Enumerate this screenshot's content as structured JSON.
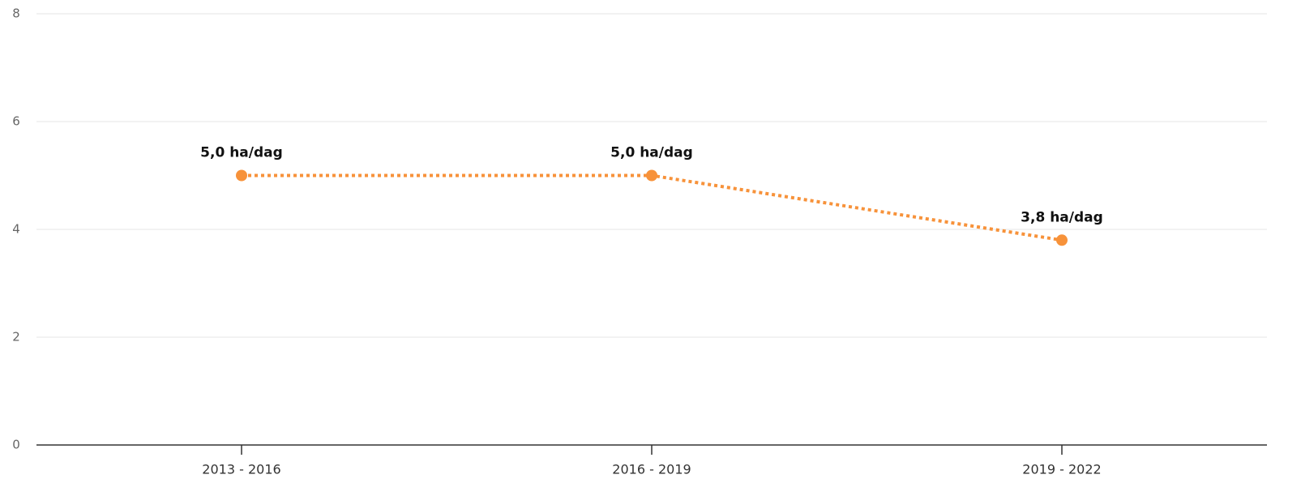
{
  "chart_data": {
    "type": "line",
    "categories": [
      "2013 - 2016",
      "2016 - 2019",
      "2019 - 2022"
    ],
    "values": [
      5.0,
      5.0,
      3.8
    ],
    "value_labels": [
      "5,0 ha/dag",
      "5,0 ha/dag",
      "3,8 ha/dag"
    ],
    "color": "#f7923a",
    "ylim": [
      0,
      8
    ],
    "yticks": [
      0,
      2,
      4,
      6,
      8
    ],
    "grid": true,
    "line_style": "dotted"
  }
}
